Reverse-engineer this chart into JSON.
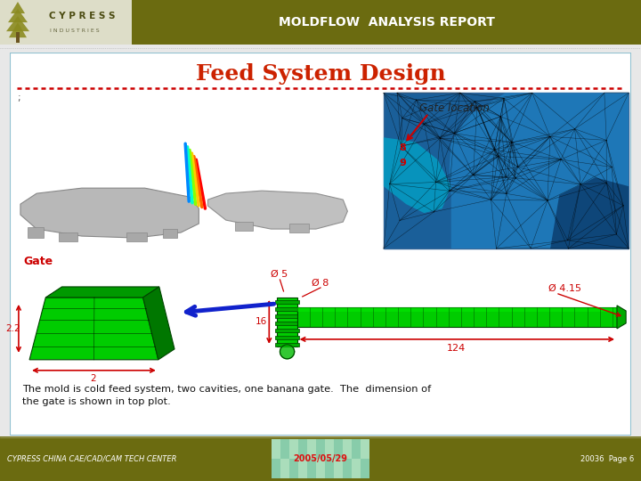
{
  "header_color": "#6b6b10",
  "header_text": "MOLDFLOW  ANALYSIS REPORT",
  "header_text_color": "#ffffff",
  "title": "Feed System Design",
  "title_color": "#cc2200",
  "bg_color": "#ffffff",
  "page_bg": "#e8e8e8",
  "footer_color": "#6b6b10",
  "footer_left": "CYPRESS CHINA CAE/CAD/CAM TECH CENTER",
  "footer_center": "2005/05/29",
  "footer_right": "20036  Page 6",
  "footer_text_color": "#ffffff",
  "gate_label": "Gate",
  "gate_location_label": "Gate location",
  "dim_color": "#cc0000",
  "d5": "Ø 5",
  "d8": "Ø 8",
  "d415": "Ø 4.15",
  "dim16": "16",
  "dim22": "2.2",
  "dim2": "2",
  "dim124": "124",
  "desc_line1": "The mold is cold feed system, two cavities, one banana gate.  The  dimension of",
  "desc_line2": "the gate is shown in top plot.",
  "dashed_color": "#cc0000",
  "border_color": "#90c0d0",
  "runner_green": "#00cc00",
  "runner_dark": "#007700",
  "arrow_blue": "#1122cc",
  "mesh_bg": "#2266aa",
  "logo_bg": "#ddddc8",
  "header_bg_main": "#6b6b10"
}
